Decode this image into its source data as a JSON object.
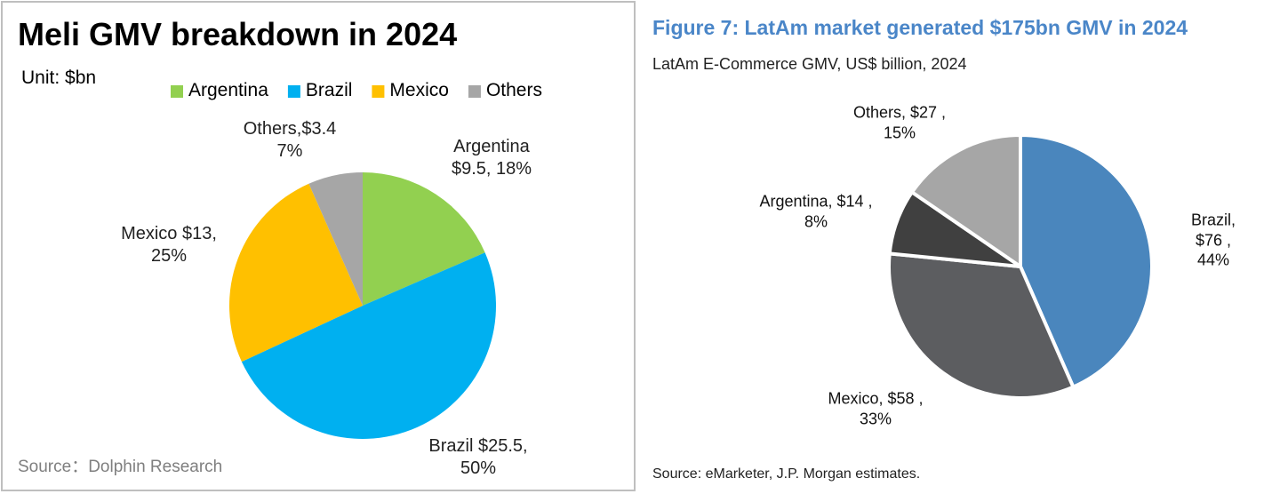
{
  "chart_data": [
    {
      "type": "pie",
      "title": "Meli GMV breakdown in 2024",
      "subtitle": "Unit: $bn",
      "categories": [
        "Argentina",
        "Brazil",
        "Mexico",
        "Others"
      ],
      "values": [
        9.5,
        25.5,
        13,
        3.4
      ],
      "value_labels": [
        "Argentina\n$9.5, 18%",
        "Brazil $25.5,\n50%",
        "Mexico $13,\n25%",
        "Others,$3.4\n7%"
      ],
      "colors": [
        "#92d050",
        "#00b0f0",
        "#ffc000",
        "#a6a6a6"
      ],
      "legend": "top",
      "source": "Source：Dolphin Research"
    },
    {
      "type": "pie",
      "title": "Figure 7: LatAm market generated $175bn GMV in 2024",
      "subtitle": "LatAm E-Commerce GMV, US$ billion, 2024",
      "categories": [
        "Brazil",
        "Mexico",
        "Argentina",
        "Others"
      ],
      "values": [
        76,
        58,
        14,
        27
      ],
      "value_labels": [
        "Brazil, $76 ,\n44%",
        "Mexico, $58 ,\n33%",
        "Argentina, $14 ,\n8%",
        "Others, $27 ,\n15%"
      ],
      "colors": [
        "#4a86bd",
        "#5c5d60",
        "#404040",
        "#a6a6a6"
      ],
      "source": "Source: eMarketer, J.P. Morgan estimates."
    }
  ]
}
